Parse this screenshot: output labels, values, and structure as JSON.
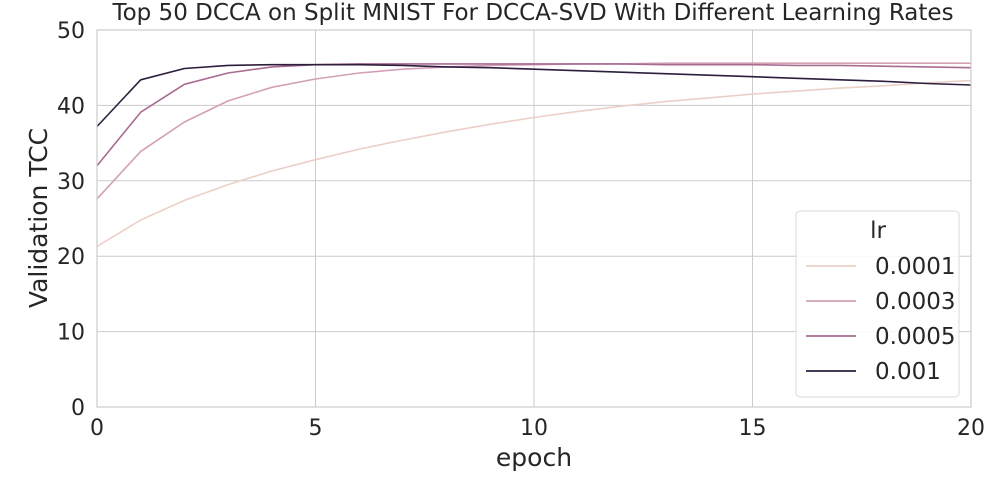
{
  "chart_data": {
    "type": "line",
    "title": "Top 50 DCCA on Split MNIST For DCCA-SVD With Different Learning Rates",
    "xlabel": "epoch",
    "ylabel": "Validation TCC",
    "xlim": [
      0,
      20
    ],
    "ylim": [
      0,
      50
    ],
    "xticks": [
      0,
      5,
      10,
      15,
      20
    ],
    "yticks": [
      0,
      10,
      20,
      30,
      40,
      50
    ],
    "grid": true,
    "legend": {
      "title": "lr",
      "placement": "lower-right"
    },
    "x": [
      0,
      1,
      2,
      3,
      4,
      5,
      6,
      7,
      8,
      9,
      10,
      11,
      12,
      13,
      14,
      15,
      16,
      17,
      18,
      19,
      20
    ],
    "series": [
      {
        "name": "0.0001",
        "color": "#ebd0c8",
        "values": [
          21.3,
          24.8,
          27.4,
          29.5,
          31.3,
          32.8,
          34.2,
          35.4,
          36.5,
          37.5,
          38.4,
          39.2,
          39.9,
          40.5,
          41.0,
          41.5,
          41.9,
          42.3,
          42.6,
          43.0,
          43.3
        ]
      },
      {
        "name": "0.0003",
        "color": "#d3a0b6",
        "values": [
          27.6,
          33.9,
          37.8,
          40.6,
          42.4,
          43.5,
          44.3,
          44.8,
          45.1,
          45.3,
          45.4,
          45.5,
          45.5,
          45.6,
          45.6,
          45.6,
          45.6,
          45.6,
          45.6,
          45.6,
          45.6
        ]
      },
      {
        "name": "0.0005",
        "color": "#a86b91",
        "values": [
          32.0,
          39.1,
          42.8,
          44.3,
          45.1,
          45.4,
          45.5,
          45.5,
          45.5,
          45.5,
          45.5,
          45.5,
          45.5,
          45.4,
          45.4,
          45.4,
          45.3,
          45.3,
          45.2,
          45.1,
          45.0
        ]
      },
      {
        "name": "0.001",
        "color": "#2d1e3e",
        "values": [
          37.2,
          43.4,
          44.9,
          45.3,
          45.4,
          45.4,
          45.4,
          45.3,
          45.1,
          45.0,
          44.8,
          44.6,
          44.4,
          44.2,
          44.0,
          43.8,
          43.6,
          43.4,
          43.2,
          42.9,
          42.7
        ]
      }
    ]
  }
}
